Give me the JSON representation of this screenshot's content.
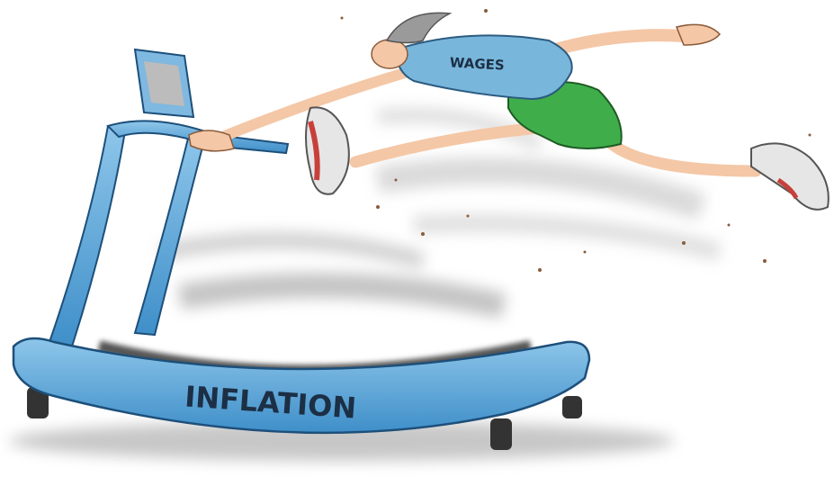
{
  "labels": {
    "shirt": "WAGES",
    "treadmill": "INFLATION"
  }
}
